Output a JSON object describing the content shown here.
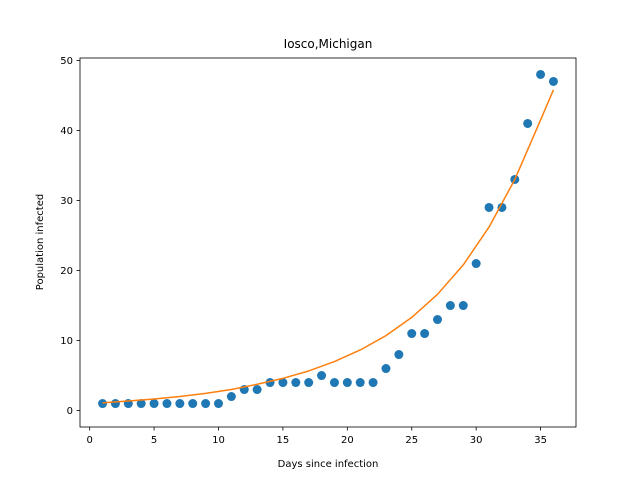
{
  "chart_data": {
    "type": "scatter",
    "title": "Iosco,Michigan",
    "xlabel": "Days since infection",
    "ylabel": "Population infected",
    "xlim": [
      -0.75,
      37.75
    ],
    "ylim": [
      -2.35,
      50.35
    ],
    "xticks": [
      0,
      5,
      10,
      15,
      20,
      25,
      30,
      35
    ],
    "yticks": [
      0,
      10,
      20,
      30,
      40,
      50
    ],
    "grid": false,
    "series": [
      {
        "kind": "scatter",
        "color": "#1f77b4",
        "x": [
          1,
          2,
          3,
          4,
          5,
          6,
          7,
          8,
          9,
          10,
          11,
          12,
          13,
          14,
          15,
          16,
          17,
          18,
          19,
          20,
          21,
          22,
          23,
          24,
          25,
          26,
          27,
          28,
          29,
          30,
          31,
          32,
          33,
          34,
          35,
          36
        ],
        "y": [
          1,
          1,
          1,
          1,
          1,
          1,
          1,
          1,
          1,
          1,
          2,
          3,
          3,
          4,
          4,
          4,
          4,
          5,
          4,
          4,
          4,
          4,
          6,
          8,
          11,
          11,
          13,
          15,
          15,
          21,
          29,
          29,
          33,
          41,
          48,
          47
        ]
      },
      {
        "kind": "line",
        "color": "#ff7f0e",
        "x": [
          1,
          3,
          5,
          7,
          9,
          11,
          13,
          15,
          17,
          19,
          21,
          23,
          25,
          27,
          29,
          31,
          33,
          35,
          36
        ],
        "y": [
          1.1,
          1.37,
          1.65,
          2.0,
          2.45,
          3.0,
          3.75,
          4.6,
          5.65,
          7.0,
          8.65,
          10.7,
          13.3,
          16.6,
          20.8,
          26.2,
          33.0,
          41.5,
          45.8
        ]
      }
    ]
  }
}
